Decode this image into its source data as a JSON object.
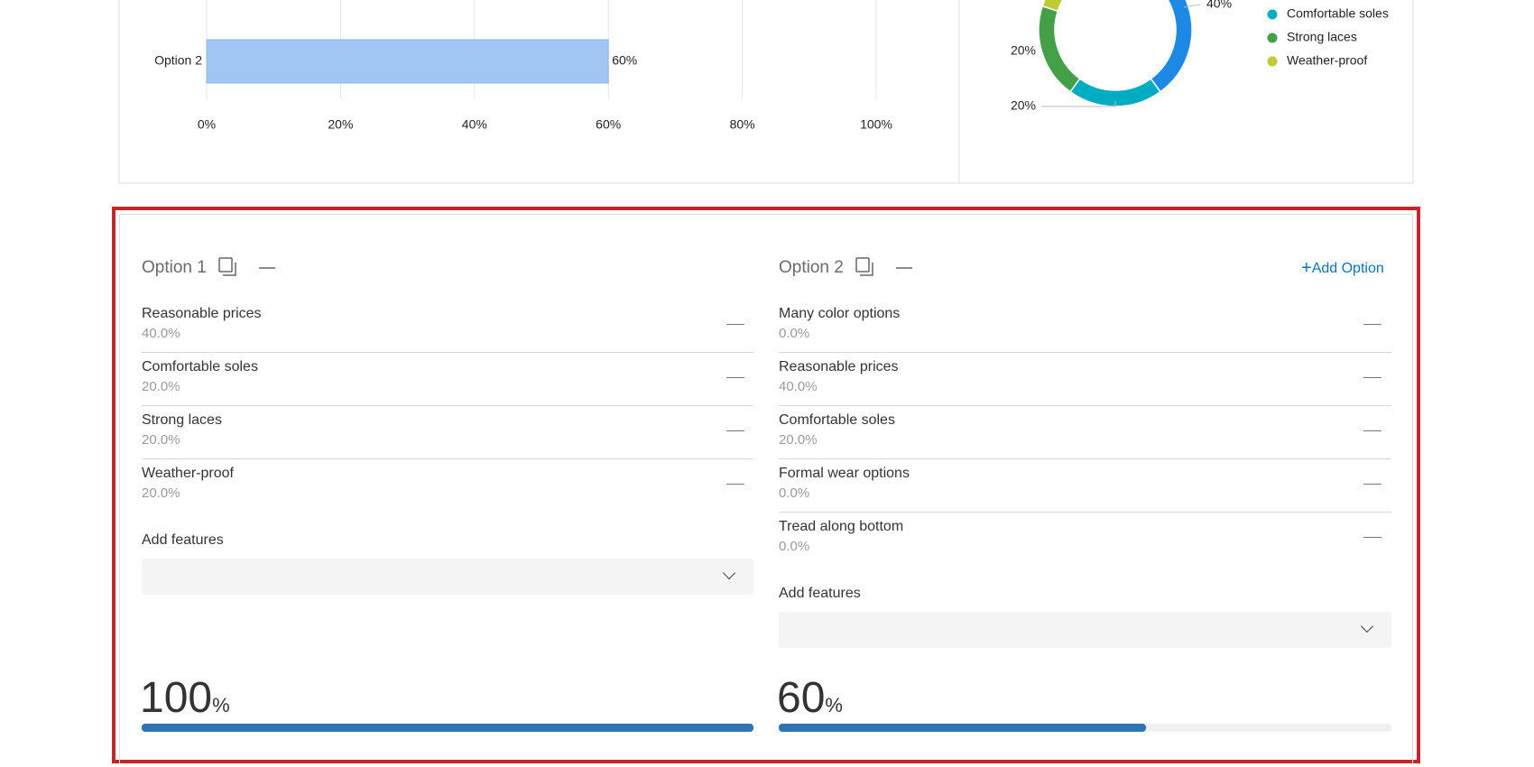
{
  "chart_data": [
    {
      "type": "bar",
      "orientation": "horizontal",
      "categories": [
        "Option 2"
      ],
      "values": [
        60
      ],
      "value_labels": [
        "60%"
      ],
      "color": "#9cc3f2",
      "xlim": [
        0,
        100
      ],
      "xticks": [
        {
          "value": 0,
          "label": "0%"
        },
        {
          "value": 20,
          "label": "20%"
        },
        {
          "value": 40,
          "label": "40%"
        },
        {
          "value": 60,
          "label": "60%"
        },
        {
          "value": 80,
          "label": "80%"
        },
        {
          "value": 100,
          "label": "100%"
        }
      ],
      "grid": true
    },
    {
      "type": "donut",
      "categories": [
        null,
        "Comfortable soles",
        "Strong laces",
        "Weather-proof"
      ],
      "values": [
        40,
        20,
        20,
        20
      ],
      "value_labels": [
        "40%",
        "20%",
        "20%",
        null
      ],
      "colors": [
        "#1e88e5",
        "#00acc1",
        "#43a047",
        "#c0ca33"
      ]
    }
  ],
  "options": [
    {
      "name": "Option 1",
      "features": [
        {
          "name": "Reasonable prices",
          "value": 40,
          "value_label": "40.0%"
        },
        {
          "name": "Comfortable soles",
          "value": 20,
          "value_label": "20.0%"
        },
        {
          "name": "Strong laces",
          "value": 20,
          "value_label": "20.0%"
        },
        {
          "name": "Weather-proof",
          "value": 20,
          "value_label": "20.0%"
        }
      ],
      "add_features": "Add features",
      "score": 100,
      "score_unit": "%"
    },
    {
      "name": "Option 2",
      "features": [
        {
          "name": "Many color options",
          "value": 0,
          "value_label": "0.0%"
        },
        {
          "name": "Reasonable prices",
          "value": 40,
          "value_label": "40.0%"
        },
        {
          "name": "Comfortable soles",
          "value": 20,
          "value_label": "20.0%"
        },
        {
          "name": "Formal wear options",
          "value": 0,
          "value_label": "0.0%"
        },
        {
          "name": "Tread along bottom",
          "value": 0,
          "value_label": "0.0%"
        }
      ],
      "add_features": "Add features",
      "score": 60,
      "score_unit": "%"
    }
  ],
  "add_option": "Add Option"
}
